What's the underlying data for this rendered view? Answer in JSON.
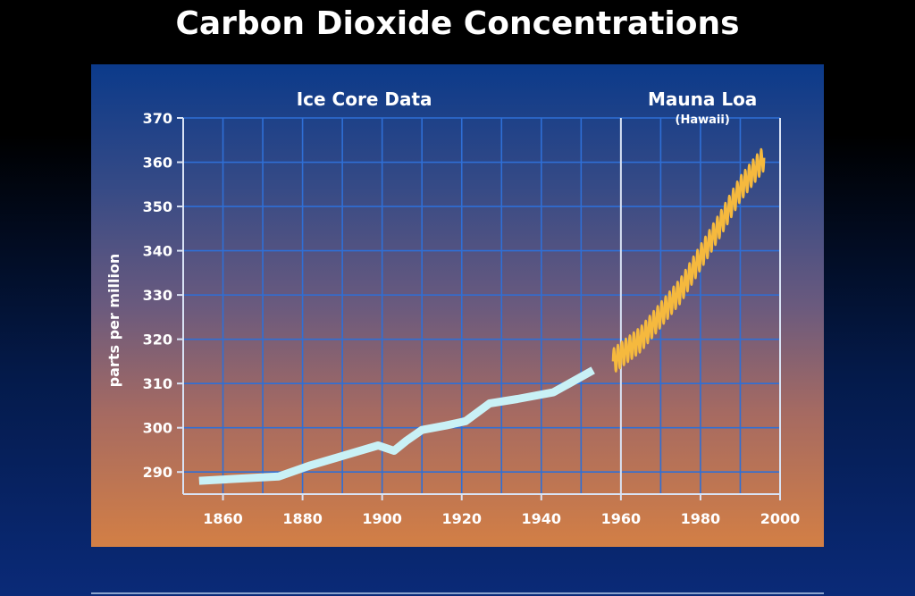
{
  "title": "Carbon Dioxide Concentrations",
  "colors": {
    "grid": "#2f6fd6",
    "axis": "#d9e3f5",
    "ice_core_line": "#c9f1f6",
    "mauna_loa_line": "#f5b93e",
    "text": "#ffffff"
  },
  "chart_data": {
    "type": "line",
    "title": "Carbon Dioxide Concentrations",
    "ylabel": "parts per million",
    "xlabel": "",
    "xlim": [
      1850,
      2000
    ],
    "ylim": [
      285,
      370
    ],
    "grid": true,
    "x_ticks": [
      1860,
      1880,
      1900,
      1920,
      1940,
      1960,
      1980,
      2000
    ],
    "y_ticks": [
      290,
      300,
      310,
      320,
      330,
      340,
      350,
      360,
      370
    ],
    "divider_x": 1960,
    "section_labels": [
      {
        "text": "Ice Core Data",
        "sub": ""
      },
      {
        "text": "Mauna Loa",
        "sub": "(Hawaii)"
      }
    ],
    "series": [
      {
        "name": "Ice Core Data",
        "x": [
          1854,
          1874,
          1882,
          1899,
          1903,
          1906,
          1910,
          1916,
          1921,
          1927,
          1934,
          1943,
          1953
        ],
        "y": [
          288,
          289,
          291.5,
          296,
          294.8,
          297,
          299.5,
          300.5,
          301.5,
          305.5,
          306.5,
          308,
          313
        ]
      },
      {
        "name": "Mauna Loa",
        "x_start": 1958,
        "x_end": 1996,
        "trend": [
          [
            1958,
            315
          ],
          [
            1965,
            320
          ],
          [
            1970,
            325.5
          ],
          [
            1975,
            331
          ],
          [
            1980,
            338.5
          ],
          [
            1985,
            346
          ],
          [
            1990,
            354
          ],
          [
            1996,
            361
          ]
        ],
        "seasonal_amplitude": 2.8
      }
    ]
  }
}
